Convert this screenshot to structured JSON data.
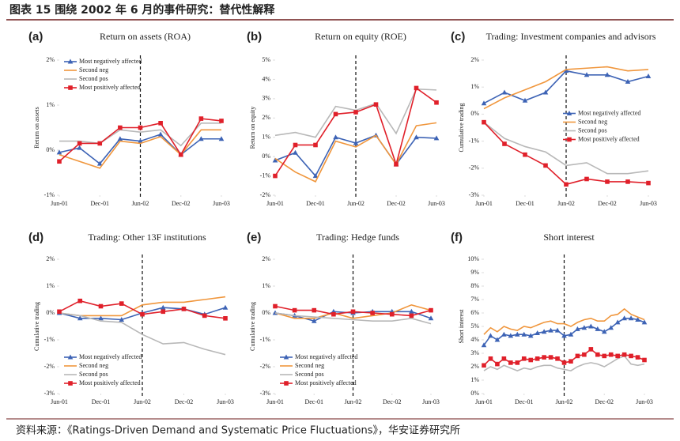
{
  "title": "图表 15 围绕 2002 年 6 月的事件研究：替代性解释",
  "source": "资料来源：《Ratings-Driven Demand and Systematic Price Fluctuations》，华安证券研究所",
  "chart_data": [
    {
      "type": "line",
      "label": "(a)",
      "title": "Return on assets (ROA)",
      "y_label": "Return on assets",
      "x": [
        0,
        3,
        6,
        9,
        12,
        15,
        18,
        21,
        24
      ],
      "xlim": [
        0,
        24
      ],
      "xticks": [
        {
          "value": 0,
          "label": "Jun-01"
        },
        {
          "value": 6,
          "label": "Dec-01"
        },
        {
          "value": 12,
          "label": "Jun-02"
        },
        {
          "value": 18,
          "label": "Dec-02"
        },
        {
          "value": 24,
          "label": "Jun-03"
        }
      ],
      "ylim": [
        -1,
        2
      ],
      "yticks": [
        {
          "value": -1,
          "label": "-1%"
        },
        {
          "value": 0,
          "label": "0%"
        },
        {
          "value": 1,
          "label": "1%"
        },
        {
          "value": 2,
          "label": "2%"
        }
      ],
      "event_line": 12,
      "legend": true,
      "legend_position": "upper left",
      "series": [
        {
          "name": "Most negatively affected",
          "color": "#3d63b5",
          "marker": "triangle",
          "values": [
            -0.05,
            0.05,
            -0.3,
            0.25,
            0.2,
            0.35,
            -0.1,
            0.25,
            0.25
          ]
        },
        {
          "name": "Second neg",
          "color": "#f0963c",
          "values": [
            -0.1,
            -0.25,
            -0.4,
            0.2,
            0.15,
            0.3,
            -0.1,
            0.45,
            0.45
          ]
        },
        {
          "name": "Second pos",
          "color": "#b8b8b8",
          "values": [
            0.2,
            0.2,
            0.15,
            0.45,
            0.4,
            0.45,
            0.1,
            0.6,
            0.6
          ]
        },
        {
          "name": "Most positively affected",
          "color": "#e0202a",
          "marker": "square",
          "values": [
            -0.25,
            0.15,
            0.15,
            0.5,
            0.5,
            0.6,
            -0.1,
            0.7,
            0.65
          ]
        }
      ]
    },
    {
      "type": "line",
      "label": "(b)",
      "title": "Return on equity (ROE)",
      "y_label": "Return on equity",
      "x": [
        0,
        3,
        6,
        9,
        12,
        15,
        18,
        21,
        24
      ],
      "xlim": [
        0,
        24
      ],
      "xticks": [
        {
          "value": 0,
          "label": "Jun-01"
        },
        {
          "value": 6,
          "label": "Dec-01"
        },
        {
          "value": 12,
          "label": "Jun-02"
        },
        {
          "value": 18,
          "label": "Dec-02"
        },
        {
          "value": 24,
          "label": "Jun-03"
        }
      ],
      "ylim": [
        -2,
        5
      ],
      "yticks": [
        {
          "value": -2,
          "label": "-2%"
        },
        {
          "value": -1,
          "label": "-1%"
        },
        {
          "value": 0,
          "label": "0%"
        },
        {
          "value": 1,
          "label": "1%"
        },
        {
          "value": 2,
          "label": "2%"
        },
        {
          "value": 3,
          "label": "3%"
        },
        {
          "value": 4,
          "label": "4%"
        },
        {
          "value": 5,
          "label": "5%"
        }
      ],
      "event_line": 12,
      "legend": false,
      "series": [
        {
          "name": "Most negatively affected",
          "color": "#3d63b5",
          "marker": "triangle",
          "values": [
            -0.2,
            0.2,
            -1,
            1,
            0.7,
            1.1,
            -0.4,
            1,
            0.95
          ]
        },
        {
          "name": "Second neg",
          "color": "#f0963c",
          "values": [
            -0.1,
            -0.8,
            -1.3,
            0.8,
            0.5,
            1.1,
            -0.4,
            1.6,
            1.75
          ]
        },
        {
          "name": "Second pos",
          "color": "#b8b8b8",
          "values": [
            1.1,
            1.25,
            1.0,
            2.6,
            2.4,
            2.75,
            1.2,
            3.5,
            3.45
          ]
        },
        {
          "name": "Most positively affected",
          "color": "#e0202a",
          "marker": "square",
          "values": [
            -1,
            0.6,
            0.6,
            2.2,
            2.3,
            2.7,
            -0.4,
            3.55,
            2.8
          ]
        }
      ]
    },
    {
      "type": "line",
      "label": "(c)",
      "title": "Trading: Investment companies and advisors",
      "y_label": "Cumulative trading",
      "x": [
        0,
        3,
        6,
        9,
        12,
        15,
        18,
        21,
        24
      ],
      "xlim": [
        0,
        24
      ],
      "xticks": [
        {
          "value": 0,
          "label": "Jun-01"
        },
        {
          "value": 6,
          "label": "Dec-01"
        },
        {
          "value": 12,
          "label": "Jun-02"
        },
        {
          "value": 18,
          "label": "Dec-02"
        },
        {
          "value": 24,
          "label": "Jun-03"
        }
      ],
      "ylim": [
        -3,
        2
      ],
      "yticks": [
        {
          "value": -3,
          "label": "-3%"
        },
        {
          "value": -2,
          "label": "-2%"
        },
        {
          "value": -1,
          "label": "-1%"
        },
        {
          "value": 0,
          "label": "0%"
        },
        {
          "value": 1,
          "label": "1%"
        },
        {
          "value": 2,
          "label": "2%"
        }
      ],
      "event_line": 12,
      "legend": true,
      "legend_position": "center right",
      "series": [
        {
          "name": "Most negatively affected",
          "color": "#3d63b5",
          "marker": "triangle",
          "values": [
            0.4,
            0.8,
            0.5,
            0.8,
            1.6,
            1.45,
            1.45,
            1.2,
            1.4
          ]
        },
        {
          "name": "Second neg",
          "color": "#f0963c",
          "values": [
            0.2,
            0.6,
            0.9,
            1.2,
            1.65,
            1.7,
            1.75,
            1.6,
            1.65
          ]
        },
        {
          "name": "Second pos",
          "color": "#b8b8b8",
          "values": [
            -0.3,
            -0.9,
            -1.2,
            -1.4,
            -1.9,
            -1.8,
            -2.2,
            -2.2,
            -2.1
          ]
        },
        {
          "name": "Most positively affected",
          "color": "#e0202a",
          "marker": "square",
          "values": [
            -0.3,
            -1.1,
            -1.5,
            -1.9,
            -2.6,
            -2.4,
            -2.5,
            -2.5,
            -2.55
          ]
        }
      ]
    },
    {
      "type": "line",
      "label": "(d)",
      "title": "Trading: Other 13F institutions",
      "y_label": "Cumulative trading",
      "x": [
        0,
        3,
        6,
        9,
        12,
        15,
        18,
        21,
        24
      ],
      "xlim": [
        0,
        24
      ],
      "xticks": [
        {
          "value": 0,
          "label": "Jun-01"
        },
        {
          "value": 6,
          "label": "Dec-01"
        },
        {
          "value": 12,
          "label": "Jun-02"
        },
        {
          "value": 18,
          "label": "Dec-02"
        },
        {
          "value": 24,
          "label": "Jun-03"
        }
      ],
      "ylim": [
        -3,
        2
      ],
      "yticks": [
        {
          "value": -3,
          "label": "-3%"
        },
        {
          "value": -2,
          "label": "-2%"
        },
        {
          "value": -1,
          "label": "-1%"
        },
        {
          "value": 0,
          "label": "0%"
        },
        {
          "value": 1,
          "label": "1%"
        },
        {
          "value": 2,
          "label": "2%"
        }
      ],
      "event_line": 12,
      "legend": true,
      "legend_position": "lower left",
      "series": [
        {
          "name": "Most negatively affected",
          "color": "#3d63b5",
          "marker": "triangle",
          "values": [
            0,
            -0.2,
            -0.2,
            -0.25,
            0,
            0.2,
            0.15,
            -0.05,
            0.2
          ]
        },
        {
          "name": "Second neg",
          "color": "#f0963c",
          "values": [
            0,
            -0.1,
            -0.1,
            -0.1,
            0.3,
            0.4,
            0.4,
            0.5,
            0.6
          ]
        },
        {
          "name": "Second pos",
          "color": "#b8b8b8",
          "values": [
            0,
            -0.1,
            -0.3,
            -0.35,
            -0.8,
            -1.15,
            -1.1,
            -1.35,
            -1.55
          ]
        },
        {
          "name": "Most positively affected",
          "color": "#e0202a",
          "marker": "square",
          "values": [
            0.05,
            0.45,
            0.25,
            0.35,
            -0.05,
            0.05,
            0.15,
            -0.1,
            -0.2
          ]
        }
      ]
    },
    {
      "type": "line",
      "label": "(e)",
      "title": "Trading: Hedge funds",
      "y_label": "Cumulative trading",
      "x": [
        0,
        3,
        6,
        9,
        12,
        15,
        18,
        21,
        24
      ],
      "xlim": [
        0,
        24
      ],
      "xticks": [
        {
          "value": 0,
          "label": "Jun-01"
        },
        {
          "value": 6,
          "label": "Dec-01"
        },
        {
          "value": 12,
          "label": "Jun-02"
        },
        {
          "value": 18,
          "label": "Dec-02"
        },
        {
          "value": 24,
          "label": "Jun-03"
        }
      ],
      "ylim": [
        -3,
        2
      ],
      "yticks": [
        {
          "value": -3,
          "label": "-3%"
        },
        {
          "value": -2,
          "label": "-2%"
        },
        {
          "value": -1,
          "label": "-1%"
        },
        {
          "value": 0,
          "label": "0%"
        },
        {
          "value": 1,
          "label": "1%"
        },
        {
          "value": 2,
          "label": "2%"
        }
      ],
      "event_line": 12,
      "legend": true,
      "legend_position": "lower left",
      "series": [
        {
          "name": "Most negatively affected",
          "color": "#3d63b5",
          "marker": "triangle",
          "values": [
            0,
            -0.1,
            -0.3,
            0.05,
            0,
            0.05,
            0.05,
            0.05,
            -0.2
          ]
        },
        {
          "name": "Second neg",
          "color": "#f0963c",
          "values": [
            0,
            -0.2,
            -0.2,
            0,
            -0.2,
            -0.1,
            0,
            0.3,
            0.1
          ]
        },
        {
          "name": "Second pos",
          "color": "#b8b8b8",
          "values": [
            0,
            -0.1,
            -0.15,
            -0.2,
            -0.25,
            -0.3,
            -0.3,
            -0.2,
            -0.4
          ]
        },
        {
          "name": "Most positively affected",
          "color": "#e0202a",
          "marker": "square",
          "values": [
            0.25,
            0.1,
            0.1,
            -0.05,
            0.05,
            0,
            -0.05,
            -0.1,
            0.1
          ]
        }
      ]
    },
    {
      "type": "line",
      "label": "(f)",
      "title": "Short interest",
      "y_label": "Short interest",
      "x": [
        0,
        1,
        2,
        3,
        4,
        5,
        6,
        7,
        8,
        9,
        10,
        11,
        12,
        13,
        14,
        15,
        16,
        17,
        18,
        19,
        20,
        21,
        22,
        23,
        24
      ],
      "xlim": [
        0,
        24
      ],
      "xticks": [
        {
          "value": 0,
          "label": "Jun-01"
        },
        {
          "value": 6,
          "label": "Dec-01"
        },
        {
          "value": 12,
          "label": "Jun-02"
        },
        {
          "value": 18,
          "label": "Dec-02"
        },
        {
          "value": 24,
          "label": "Jun-03"
        }
      ],
      "ylim": [
        0,
        10
      ],
      "yticks": [
        {
          "value": 0,
          "label": "0%"
        },
        {
          "value": 1,
          "label": "1%"
        },
        {
          "value": 2,
          "label": "2%"
        },
        {
          "value": 3,
          "label": "3%"
        },
        {
          "value": 4,
          "label": "4%"
        },
        {
          "value": 5,
          "label": "5%"
        },
        {
          "value": 6,
          "label": "6%"
        },
        {
          "value": 7,
          "label": "7%"
        },
        {
          "value": 8,
          "label": "8%"
        },
        {
          "value": 9,
          "label": "9%"
        },
        {
          "value": 10,
          "label": "10%"
        }
      ],
      "event_line": 12,
      "legend": false,
      "series": [
        {
          "name": "Most negatively affected",
          "color": "#3d63b5",
          "marker": "triangle",
          "values": [
            3.6,
            4.3,
            4.0,
            4.4,
            4.3,
            4.4,
            4.4,
            4.3,
            4.5,
            4.6,
            4.7,
            4.7,
            4.3,
            4.4,
            4.8,
            4.9,
            5.0,
            4.8,
            4.6,
            4.9,
            5.3,
            5.6,
            5.6,
            5.5,
            5.3
          ]
        },
        {
          "name": "Second neg",
          "color": "#f0963c",
          "values": [
            4.4,
            4.9,
            4.6,
            5.0,
            4.8,
            4.7,
            5.0,
            4.9,
            5.1,
            5.3,
            5.4,
            5.2,
            5.2,
            5.0,
            5.3,
            5.5,
            5.6,
            5.4,
            5.4,
            5.8,
            5.9,
            6.3,
            5.9,
            5.7,
            5.5
          ]
        },
        {
          "name": "Second pos",
          "color": "#b8b8b8",
          "values": [
            1.7,
            2.0,
            1.8,
            2.1,
            1.9,
            1.7,
            1.9,
            1.8,
            2.0,
            2.1,
            2.1,
            1.9,
            1.8,
            1.7,
            2.0,
            2.2,
            2.3,
            2.2,
            2.0,
            2.3,
            2.6,
            2.8,
            2.2,
            2.1,
            2.2
          ]
        },
        {
          "name": "Most positively affected",
          "color": "#e0202a",
          "marker": "square",
          "values": [
            2.1,
            2.6,
            2.2,
            2.6,
            2.3,
            2.3,
            2.6,
            2.5,
            2.6,
            2.7,
            2.7,
            2.6,
            2.3,
            2.4,
            2.8,
            2.9,
            3.3,
            2.9,
            2.8,
            2.9,
            2.8,
            2.9,
            2.8,
            2.7,
            2.5
          ]
        }
      ]
    }
  ]
}
